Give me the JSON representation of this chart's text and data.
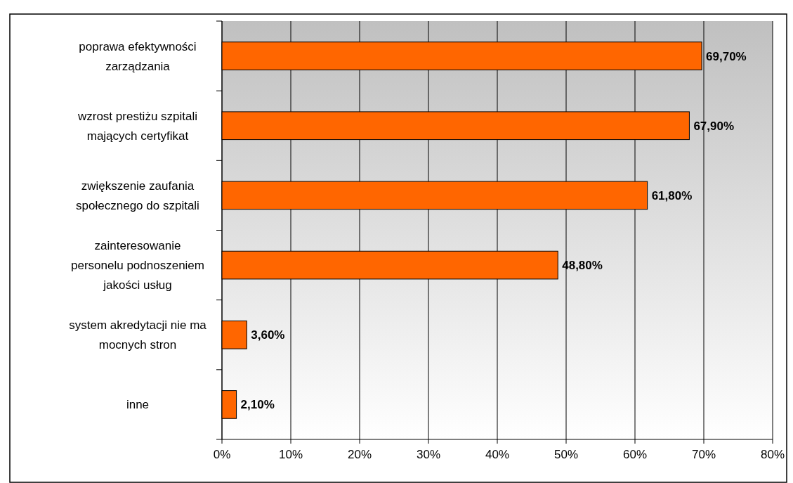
{
  "chart_data": {
    "type": "bar",
    "orientation": "horizontal",
    "categories": [
      "poprawa efektywności\nzarządzania",
      "wzrost prestiżu szpitali\nmających certyfikat",
      "zwiększenie zaufania\nspołecznego do szpitali",
      "zainteresowanie\npersonelu podnoszeniem\njakości usług",
      "system akredytacji nie ma\nmocnych stron",
      "inne"
    ],
    "values": [
      69.7,
      67.9,
      61.8,
      48.8,
      3.6,
      2.1
    ],
    "value_labels": [
      "69,70%",
      "67,90%",
      "61,80%",
      "48,80%",
      "3,60%",
      "2,10%"
    ],
    "color": "#ff6600",
    "xlim": [
      0,
      80
    ],
    "xticks": [
      {
        "value": 0,
        "label": "0%"
      },
      {
        "value": 10,
        "label": "10%"
      },
      {
        "value": 20,
        "label": "20%"
      },
      {
        "value": 30,
        "label": "30%"
      },
      {
        "value": 40,
        "label": "40%"
      },
      {
        "value": 50,
        "label": "50%"
      },
      {
        "value": 60,
        "label": "60%"
      },
      {
        "value": 70,
        "label": "70%"
      },
      {
        "value": 80,
        "label": "80%"
      }
    ],
    "grid": "x"
  }
}
